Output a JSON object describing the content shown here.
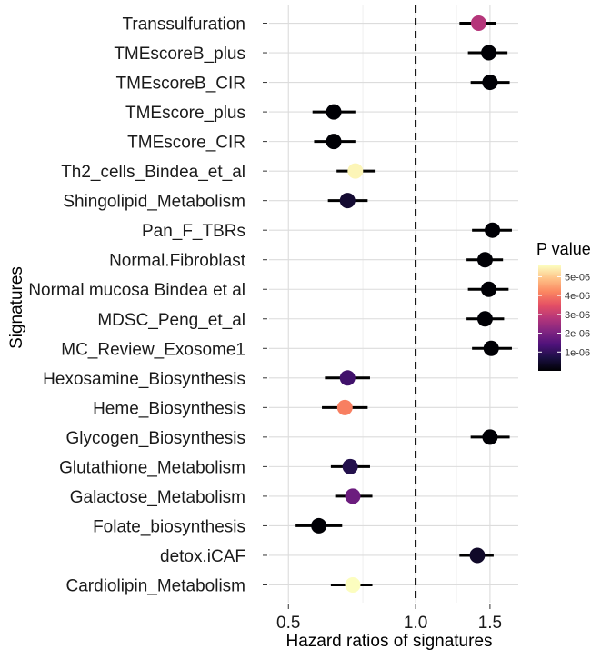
{
  "chart_data": {
    "type": "forest",
    "xlabel": "Hazard ratios of signatures",
    "ylabel": "Signatures",
    "x_scale": "log",
    "xlim": [
      0.45,
      1.75
    ],
    "x_ticks": [
      {
        "value": 0.5,
        "label": "0.5"
      },
      {
        "value": 1.0,
        "label": "1.0"
      },
      {
        "value": 1.5,
        "label": "1.5"
      }
    ],
    "reference_line": 1.0,
    "grid": true,
    "legend": {
      "title": "P value",
      "position": "right",
      "min": 0,
      "max": 5.6e-06,
      "ticks": [
        {
          "value": 1e-06,
          "label": "1e-06"
        },
        {
          "value": 2e-06,
          "label": "2e-06"
        },
        {
          "value": 3e-06,
          "label": "3e-06"
        },
        {
          "value": 4e-06,
          "label": "4e-06"
        },
        {
          "value": 5e-06,
          "label": "5e-06"
        }
      ],
      "colormap": [
        "#000004",
        "#1c1044",
        "#4f127b",
        "#812581",
        "#b5367a",
        "#e55064",
        "#fb8761",
        "#fec287",
        "#fcfdbf"
      ]
    },
    "rows": [
      {
        "signature": "Transsulfuration",
        "hr": 1.41,
        "lower": 1.27,
        "upper": 1.55,
        "p": 2.8e-06
      },
      {
        "signature": "TMEscoreB_plus",
        "hr": 1.49,
        "lower": 1.33,
        "upper": 1.65,
        "p": 1e-08
      },
      {
        "signature": "TMEscoreB_CIR",
        "hr": 1.5,
        "lower": 1.35,
        "upper": 1.67,
        "p": 1e-08
      },
      {
        "signature": "TMEscore_plus",
        "hr": 0.64,
        "lower": 0.57,
        "upper": 0.72,
        "p": 1e-08
      },
      {
        "signature": "TMEscore_CIR",
        "hr": 0.64,
        "lower": 0.575,
        "upper": 0.72,
        "p": 1e-08
      },
      {
        "signature": "Th2_cells_Bindea_et_al",
        "hr": 0.72,
        "lower": 0.65,
        "upper": 0.8,
        "p": 5.5e-06
      },
      {
        "signature": "Shingolipid_Metabolism",
        "hr": 0.69,
        "lower": 0.62,
        "upper": 0.77,
        "p": 5e-07
      },
      {
        "signature": "Pan_F_TBRs",
        "hr": 1.52,
        "lower": 1.36,
        "upper": 1.69,
        "p": 1e-08
      },
      {
        "signature": "Normal.Fibroblast",
        "hr": 1.46,
        "lower": 1.32,
        "upper": 1.61,
        "p": 1e-08
      },
      {
        "signature": "Normal mucosa Bindea et al",
        "hr": 1.49,
        "lower": 1.33,
        "upper": 1.66,
        "p": 1e-08
      },
      {
        "signature": "MDSC_Peng_et_al",
        "hr": 1.46,
        "lower": 1.32,
        "upper": 1.62,
        "p": 1e-08
      },
      {
        "signature": "MC_Review_Exosome1",
        "hr": 1.51,
        "lower": 1.36,
        "upper": 1.69,
        "p": 1e-08
      },
      {
        "signature": "Hexosamine_Biosynthesis",
        "hr": 0.69,
        "lower": 0.61,
        "upper": 0.78,
        "p": 1.2e-06
      },
      {
        "signature": "Heme_Biosynthesis",
        "hr": 0.68,
        "lower": 0.6,
        "upper": 0.77,
        "p": 4.1e-06
      },
      {
        "signature": "Glycogen_Biosynthesis",
        "hr": 1.5,
        "lower": 1.35,
        "upper": 1.67,
        "p": 1e-08
      },
      {
        "signature": "Glutathione_Metabolism",
        "hr": 0.7,
        "lower": 0.63,
        "upper": 0.78,
        "p": 8e-07
      },
      {
        "signature": "Galactose_Metabolism",
        "hr": 0.71,
        "lower": 0.645,
        "upper": 0.79,
        "p": 1.8e-06
      },
      {
        "signature": "Folate_biosynthesis",
        "hr": 0.59,
        "lower": 0.52,
        "upper": 0.67,
        "p": 1e-08
      },
      {
        "signature": "detox.iCAF",
        "hr": 1.4,
        "lower": 1.27,
        "upper": 1.53,
        "p": 4e-07
      },
      {
        "signature": "Cardiolipin_Metabolism",
        "hr": 0.71,
        "lower": 0.63,
        "upper": 0.79,
        "p": 5.6e-06
      }
    ]
  }
}
